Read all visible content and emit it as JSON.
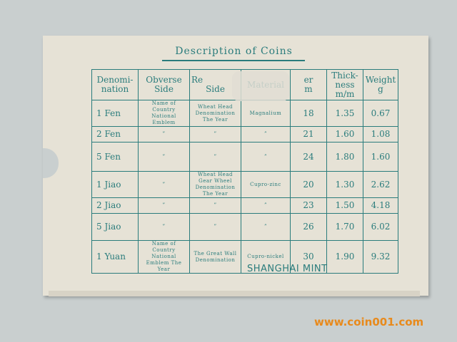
{
  "title": "Description of Coins",
  "headers": [
    [
      "Denomi-",
      "nation"
    ],
    [
      "Obverse",
      "Side"
    ],
    [
      "Re",
      "Side"
    ],
    [
      "Material"
    ],
    [
      "er",
      "m"
    ],
    [
      "Thick-",
      "ness",
      "m/m"
    ],
    [
      "Weight",
      "g"
    ]
  ],
  "rows": [
    [
      "1 Fen",
      "Name of Country National Emblem",
      "Wheat Head Denomination The Year",
      "Magnalium",
      "18",
      "1.35",
      "0.67"
    ],
    [
      "2 Fen",
      "”",
      "”",
      "”",
      "21",
      "1.60",
      "1.08"
    ],
    [
      "5 Fen",
      "”",
      "”",
      "”",
      "24",
      "1.80",
      "1.60"
    ],
    [
      "1 Jiao",
      "”",
      "Wheat Head Gear Wheel Denomination The Year",
      "Cupro-zinc",
      "20",
      "1.30",
      "2.62"
    ],
    [
      "2 Jiao",
      "”",
      "”",
      "”",
      "23",
      "1.50",
      "4.18"
    ],
    [
      "5 Jiao",
      "”",
      "”",
      "”",
      "26",
      "1.70",
      "6.02"
    ],
    [
      "1 Yuan",
      "Name of Country National Emblem The Year",
      "The Great Wall Denomination",
      "Cupro-nickel",
      "30",
      "1.90",
      "9.32"
    ]
  ],
  "mint": "SHANGHAI MINT",
  "watermark": "www.coin001.com"
}
